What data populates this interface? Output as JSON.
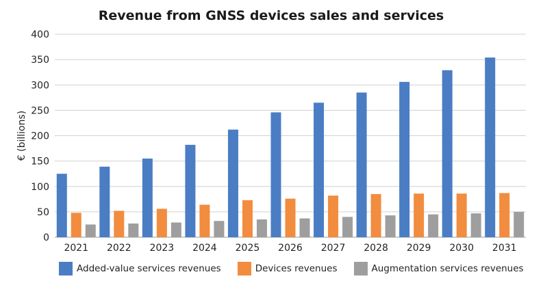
{
  "chart_data": {
    "type": "bar",
    "title": "Revenue from GNSS devices sales and services",
    "xlabel": "",
    "ylabel": "€ (billions)",
    "ylim": [
      0,
      400
    ],
    "yticks": [
      0,
      50,
      100,
      150,
      200,
      250,
      300,
      350,
      400
    ],
    "grid": true,
    "legend_position": "bottom",
    "categories": [
      "2021",
      "2022",
      "2023",
      "2024",
      "2025",
      "2026",
      "2027",
      "2028",
      "2029",
      "2030",
      "2031"
    ],
    "series": [
      {
        "name": "Added-value services revenues",
        "color": "#4a7dc4",
        "values": [
          125,
          139,
          155,
          182,
          212,
          246,
          265,
          285,
          306,
          329,
          354
        ]
      },
      {
        "name": "Devices revenues",
        "color": "#f28c3f",
        "values": [
          48,
          52,
          56,
          64,
          73,
          76,
          82,
          85,
          86,
          86,
          87
        ]
      },
      {
        "name": "Augmentation services revenues",
        "color": "#9e9e9e",
        "values": [
          25,
          27,
          29,
          32,
          35,
          37,
          40,
          43,
          45,
          47,
          50
        ]
      }
    ]
  }
}
